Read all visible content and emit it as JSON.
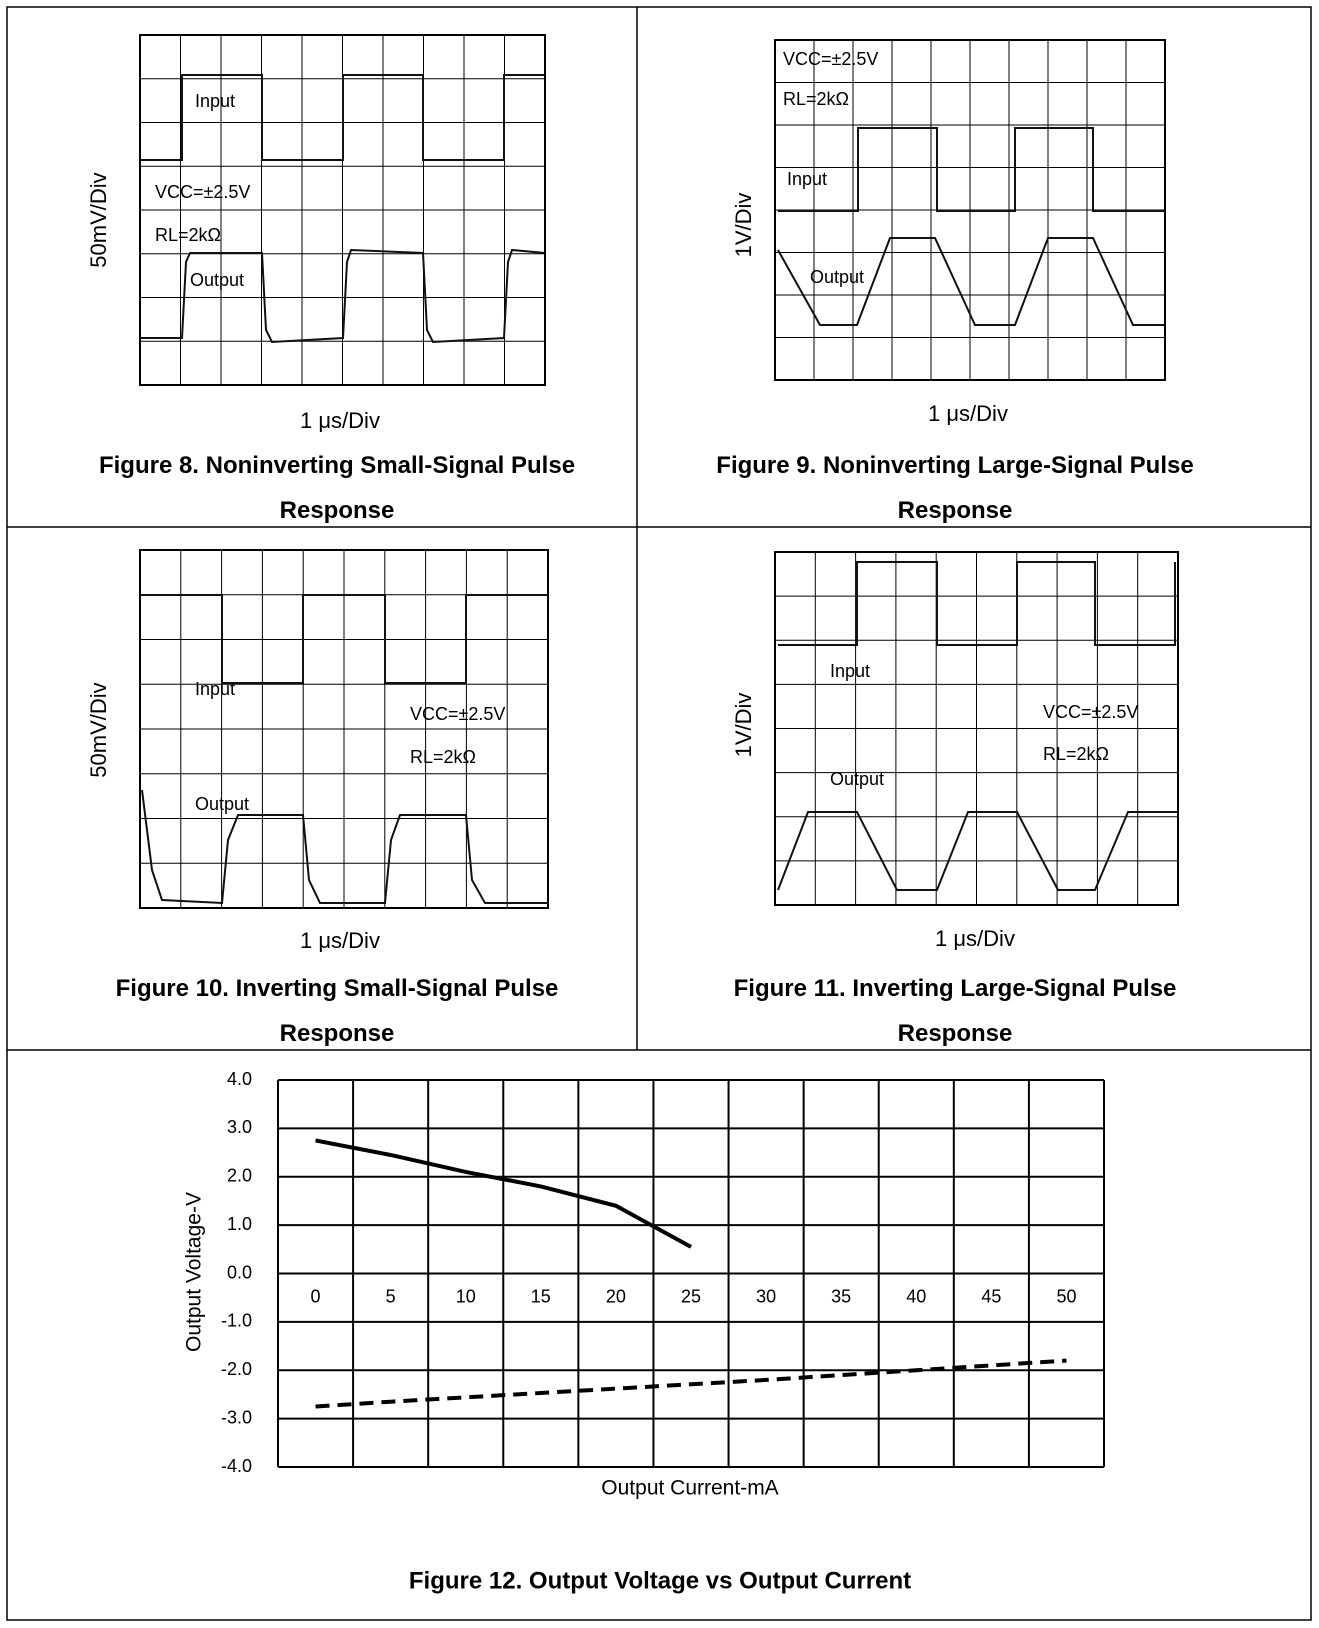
{
  "figures": [
    {
      "y_label": "50mV/Div",
      "x_label": "1 μs/Div",
      "annotations": [
        "Input",
        "VCC=±2.5V",
        "RL=2kΩ",
        "Output"
      ],
      "caption": "Figure 8. Noninverting Small-Signal Pulse Response"
    },
    {
      "y_label": "1V/Div",
      "x_label": "1 μs/Div",
      "annotations": [
        "VCC=±2.5V",
        "RL=2kΩ",
        "Input",
        "Output"
      ],
      "caption": "Figure 9. Noninverting Large-Signal Pulse Response"
    },
    {
      "y_label": "50mV/Div",
      "x_label": "1 μs/Div",
      "annotations": [
        "Input",
        "VCC=±2.5V",
        "RL=2kΩ",
        "Output"
      ],
      "caption": "Figure 10. Inverting Small-Signal Pulse Response"
    },
    {
      "y_label": "1V/Div",
      "x_label": "1 μs/Div",
      "annotations": [
        "Input",
        "VCC=±2.5V",
        "RL=2kΩ",
        "Output"
      ],
      "caption": "Figure 11. Inverting Large-Signal Pulse Response"
    }
  ],
  "chart_data": {
    "type": "line",
    "caption": "Figure 12. Output Voltage vs Output Current",
    "x_label": "Output Current-mA",
    "y_label": "Output Voltage-V",
    "categories": [
      "0",
      "5",
      "10",
      "15",
      "20",
      "25",
      "30",
      "35",
      "40",
      "45",
      "50"
    ],
    "series": [
      {
        "color": "#000000",
        "style": "solid",
        "values": [
          2.75,
          2.45,
          2.1,
          1.8,
          1.4,
          0.55,
          null,
          null,
          null,
          null,
          null
        ]
      },
      {
        "color": "#000000",
        "style": "dashed",
        "values": [
          -2.75,
          -2.65,
          -2.56,
          -2.47,
          -2.38,
          -2.29,
          -2.2,
          -2.1,
          -2.0,
          -1.9,
          -1.8
        ]
      }
    ],
    "ylim": [
      -4,
      4
    ],
    "yticks": [
      {
        "value": -4,
        "label": "-4.0"
      },
      {
        "value": -3,
        "label": "-3.0"
      },
      {
        "value": -2,
        "label": "-2.0"
      },
      {
        "value": -1,
        "label": "-1.0"
      },
      {
        "value": 0,
        "label": "0.0"
      },
      {
        "value": 1,
        "label": "1.0"
      },
      {
        "value": 2,
        "label": "2.0"
      },
      {
        "value": 3,
        "label": "3.0"
      },
      {
        "value": 4,
        "label": "4.0"
      }
    ],
    "grid": true
  }
}
